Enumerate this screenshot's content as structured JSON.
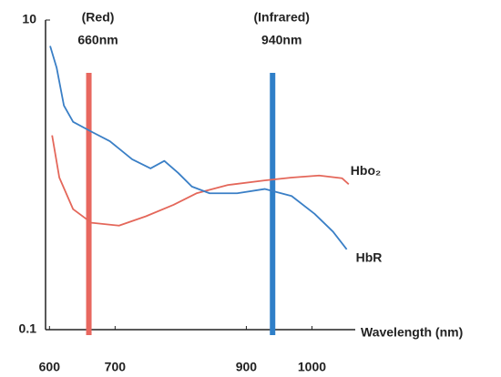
{
  "chart_data": {
    "type": "line",
    "x_label": "Wavelength (nm)",
    "log_y": true,
    "xlim": [
      594,
      1066
    ],
    "ylim": [
      0.1,
      10
    ],
    "xticks": [
      600,
      700,
      900,
      1000
    ],
    "yticks": [
      0.1,
      10
    ],
    "series": [
      {
        "name": "Hbo₂",
        "color": "#e4675a",
        "x": [
          604,
          615,
          636,
          664,
          706,
          747,
          789,
          824,
          872,
          928,
          969,
          1011,
          1046,
          1056
        ],
        "values": [
          1.8,
          0.96,
          0.6,
          0.49,
          0.47,
          0.54,
          0.64,
          0.76,
          0.86,
          0.92,
          0.96,
          0.99,
          0.95,
          0.87
        ]
      },
      {
        "name": "HbR",
        "color": "#3a7fc6",
        "x": [
          601,
          611,
          622,
          636,
          664,
          692,
          726,
          754,
          775,
          796,
          817,
          844,
          886,
          928,
          969,
          1004,
          1032,
          1053
        ],
        "values": [
          6.8,
          4.9,
          2.8,
          2.2,
          1.9,
          1.65,
          1.26,
          1.1,
          1.23,
          1.03,
          0.84,
          0.76,
          0.76,
          0.81,
          0.73,
          0.56,
          0.43,
          0.33
        ]
      }
    ],
    "annotations": [
      {
        "label": "(Red)",
        "sublabel": "660nm",
        "x": 660,
        "color": "#e8675f"
      },
      {
        "label": "(Infrared)",
        "sublabel": "940nm",
        "x": 940,
        "color": "#2f7fc8"
      }
    ]
  }
}
